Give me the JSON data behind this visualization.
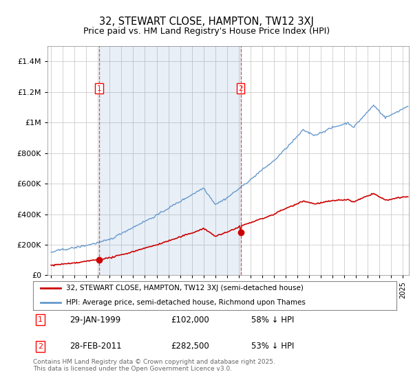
{
  "title": "32, STEWART CLOSE, HAMPTON, TW12 3XJ",
  "subtitle": "Price paid vs. HM Land Registry's House Price Index (HPI)",
  "background_color": "#ffffff",
  "plot_bg_color": "#ffffff",
  "shade_color": "#ddeeff",
  "legend_label_red": "32, STEWART CLOSE, HAMPTON, TW12 3XJ (semi-detached house)",
  "legend_label_blue": "HPI: Average price, semi-detached house, Richmond upon Thames",
  "footnote": "Contains HM Land Registry data © Crown copyright and database right 2025.\nThis data is licensed under the Open Government Licence v3.0.",
  "point1_date": "29-JAN-1999",
  "point1_price": 102000,
  "point1_label": "58% ↓ HPI",
  "point1_year": 1999.08,
  "point2_date": "28-FEB-2011",
  "point2_price": 282500,
  "point2_label": "53% ↓ HPI",
  "point2_year": 2011.16,
  "ylim_max": 1500000,
  "xlim_min": 1994.7,
  "xlim_max": 2025.5,
  "red_color": "#cc0000",
  "blue_color": "#6699cc",
  "grid_color": "#cccccc"
}
